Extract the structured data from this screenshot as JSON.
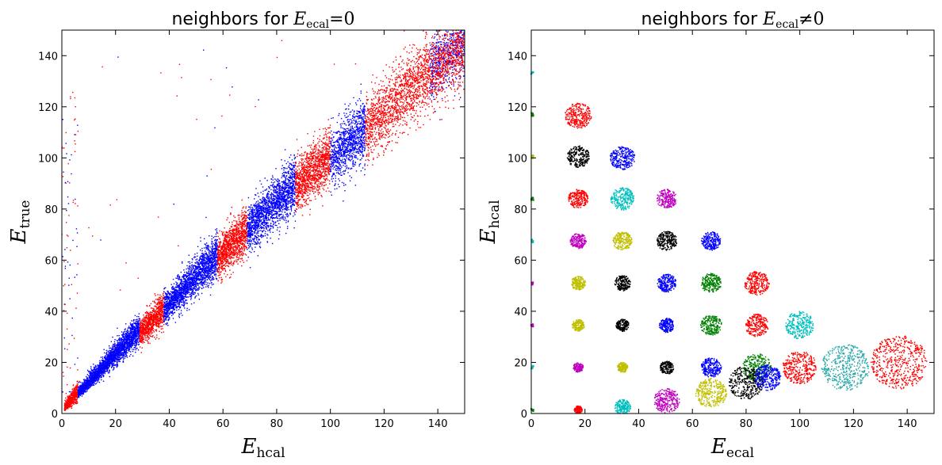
{
  "chart_data": [
    {
      "type": "scatter",
      "title": "neighbors for E_ecal = 0",
      "title_parts": {
        "prefix": "neighbors for ",
        "var": "E",
        "sub": "ecal",
        "rel": "=0"
      },
      "xlabel_parts": {
        "var": "E",
        "sub": "hcal"
      },
      "ylabel_parts": {
        "var": "E",
        "sub": "true"
      },
      "xlim": [
        0,
        150
      ],
      "ylim": [
        0,
        150
      ],
      "xticks": [
        "0",
        "20",
        "40",
        "60",
        "80",
        "100",
        "120",
        "140"
      ],
      "yticks": [
        "0",
        "20",
        "40",
        "60",
        "80",
        "100",
        "120",
        "140"
      ],
      "grid": false,
      "bands": [
        {
          "x": [
            1,
            6
          ],
          "center_ratio": 1.25,
          "spread": 0.45,
          "count": 520,
          "color": "#ff0000"
        },
        {
          "x": [
            6,
            29
          ],
          "center_ratio": 1.1,
          "spread": 0.18,
          "count": 2600,
          "color": "#0000ff"
        },
        {
          "x": [
            29,
            38
          ],
          "center_ratio": 1.05,
          "spread": 0.15,
          "count": 900,
          "color": "#ff0000"
        },
        {
          "x": [
            38,
            58
          ],
          "center_ratio": 1.05,
          "spread": 0.14,
          "count": 2000,
          "color": "#0000ff"
        },
        {
          "x": [
            58,
            69
          ],
          "center_ratio": 1.02,
          "spread": 0.13,
          "count": 1100,
          "color": "#ff0000"
        },
        {
          "x": [
            69,
            87
          ],
          "center_ratio": 1.02,
          "spread": 0.12,
          "count": 1700,
          "color": "#0000ff"
        },
        {
          "x": [
            87,
            100
          ],
          "center_ratio": 1.0,
          "spread": 0.11,
          "count": 1200,
          "color": "#ff0000"
        },
        {
          "x": [
            100,
            113
          ],
          "center_ratio": 0.98,
          "spread": 0.11,
          "count": 1000,
          "color": "#0000ff"
        },
        {
          "x": [
            113,
            137
          ],
          "center_ratio": 0.97,
          "spread": 0.11,
          "count": 1500,
          "color": "#ff0000"
        },
        {
          "x": [
            137,
            150
          ],
          "center_ratio": 0.97,
          "spread": 0.1,
          "count": 600,
          "color": "#0000ff"
        },
        {
          "x": [
            137,
            150
          ],
          "center_ratio": 0.95,
          "spread": 0.1,
          "count": 700,
          "color": "#ff0000"
        }
      ]
    },
    {
      "type": "scatter",
      "title": "neighbors for E_ecal ≠ 0",
      "title_parts": {
        "prefix": "neighbors for ",
        "var": "E",
        "sub": "ecal",
        "rel": "≠0"
      },
      "xlabel_parts": {
        "var": "E",
        "sub": "ecal"
      },
      "ylabel_parts": {
        "var": "E",
        "sub": "hcal"
      },
      "xlim": [
        0,
        150
      ],
      "ylim": [
        0,
        150
      ],
      "xticks": [
        "0",
        "20",
        "40",
        "60",
        "80",
        "100",
        "120",
        "140"
      ],
      "yticks": [
        "0",
        "20",
        "40",
        "60",
        "80",
        "100",
        "120",
        "140"
      ],
      "grid": false,
      "clusters": [
        {
          "x": 17.5,
          "y": 116.5,
          "r": 5,
          "color": "#ff0000"
        },
        {
          "x": 17.5,
          "y": 100.5,
          "r": 4.2,
          "color": "#000000"
        },
        {
          "x": 34,
          "y": 100,
          "r": 4.6,
          "color": "#0000ff"
        },
        {
          "x": 17.5,
          "y": 84,
          "r": 3.7,
          "color": "#ff0000"
        },
        {
          "x": 34,
          "y": 84,
          "r": 4.4,
          "color": "#00bfbf"
        },
        {
          "x": 50.5,
          "y": 84,
          "r": 3.8,
          "color": "#bf00bf"
        },
        {
          "x": 17.5,
          "y": 67.5,
          "r": 3.0,
          "color": "#bf00bf"
        },
        {
          "x": 34,
          "y": 67.5,
          "r": 3.6,
          "color": "#bfbf00"
        },
        {
          "x": 50.5,
          "y": 67.5,
          "r": 3.8,
          "color": "#000000"
        },
        {
          "x": 67,
          "y": 67.5,
          "r": 3.6,
          "color": "#0000ff"
        },
        {
          "x": 17.5,
          "y": 51,
          "r": 2.7,
          "color": "#bfbf00"
        },
        {
          "x": 34,
          "y": 51,
          "r": 3.0,
          "color": "#000000"
        },
        {
          "x": 50.5,
          "y": 51,
          "r": 3.5,
          "color": "#0000ff"
        },
        {
          "x": 67,
          "y": 51,
          "r": 3.8,
          "color": "#008000"
        },
        {
          "x": 84,
          "y": 51,
          "r": 4.6,
          "color": "#ff0000"
        },
        {
          "x": 17.5,
          "y": 34.5,
          "r": 2.3,
          "color": "#bfbf00"
        },
        {
          "x": 34,
          "y": 34.5,
          "r": 2.4,
          "color": "#000000"
        },
        {
          "x": 50.5,
          "y": 34.5,
          "r": 2.8,
          "color": "#0000ff"
        },
        {
          "x": 67,
          "y": 34.5,
          "r": 4.0,
          "color": "#008000"
        },
        {
          "x": 84,
          "y": 34.5,
          "r": 4.4,
          "color": "#ff0000"
        },
        {
          "x": 100,
          "y": 34.5,
          "r": 5.4,
          "color": "#00bfbf"
        },
        {
          "x": 17.5,
          "y": 18,
          "r": 1.9,
          "color": "#bf00bf"
        },
        {
          "x": 34,
          "y": 18,
          "r": 2.0,
          "color": "#bfbf00"
        },
        {
          "x": 50.5,
          "y": 18,
          "r": 2.6,
          "color": "#000000"
        },
        {
          "x": 67,
          "y": 18,
          "r": 3.8,
          "color": "#0000ff"
        },
        {
          "x": 84,
          "y": 18,
          "r": 5.4,
          "color": "#008000"
        },
        {
          "x": 100,
          "y": 18,
          "r": 6.4,
          "color": "#ff0000"
        },
        {
          "x": 117,
          "y": 18,
          "r": 9.0,
          "color": "#2aa8a8"
        },
        {
          "x": 137,
          "y": 20,
          "r": 10.5,
          "color": "#ff0000"
        },
        {
          "x": 17.5,
          "y": 1.5,
          "r": 1.5,
          "color": "#ff0000"
        },
        {
          "x": 34,
          "y": 2.5,
          "r": 3.0,
          "color": "#00bfbf"
        },
        {
          "x": 50.5,
          "y": 5,
          "r": 4.8,
          "color": "#bf00bf"
        },
        {
          "x": 67,
          "y": 8,
          "r": 5.8,
          "color": "#bfbf00"
        },
        {
          "x": 80,
          "y": 12,
          "r": 6.5,
          "color": "#000000"
        },
        {
          "x": 88,
          "y": 14,
          "r": 5.0,
          "color": "#0000ff"
        }
      ],
      "axis_points": [
        {
          "y": 133.5,
          "color": "#00bfbf"
        },
        {
          "y": 117,
          "color": "#008000"
        },
        {
          "y": 100.5,
          "color": "#bfbf00"
        },
        {
          "y": 84,
          "color": "#008000"
        },
        {
          "y": 67.5,
          "color": "#00bfbf"
        },
        {
          "y": 51,
          "color": "#bf00bf"
        },
        {
          "y": 34.5,
          "color": "#bf00bf"
        },
        {
          "y": 18,
          "color": "#00bfbf"
        },
        {
          "y": 1.5,
          "color": "#008000"
        }
      ]
    }
  ]
}
